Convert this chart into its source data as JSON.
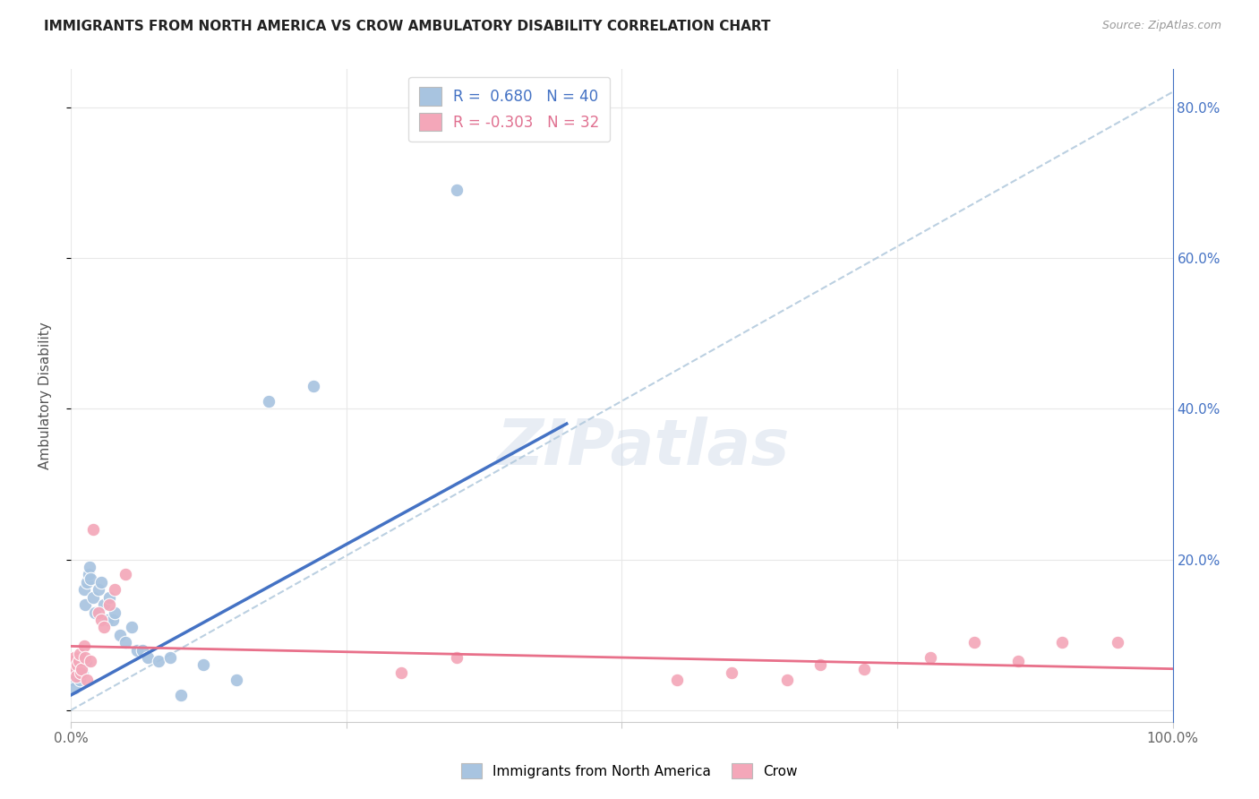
{
  "title": "IMMIGRANTS FROM NORTH AMERICA VS CROW AMBULATORY DISABILITY CORRELATION CHART",
  "source": "Source: ZipAtlas.com",
  "ylabel": "Ambulatory Disability",
  "blue_R": 0.68,
  "blue_N": 40,
  "pink_R": -0.303,
  "pink_N": 32,
  "blue_color": "#a8c4e0",
  "blue_line_color": "#4472c4",
  "pink_color": "#f4a7b9",
  "pink_line_color": "#e8708a",
  "dashed_line_color": "#b0c8dc",
  "watermark": "ZIPatlas",
  "blue_scatter_x": [
    0.002,
    0.003,
    0.004,
    0.005,
    0.006,
    0.007,
    0.008,
    0.009,
    0.01,
    0.011,
    0.012,
    0.013,
    0.014,
    0.015,
    0.016,
    0.017,
    0.018,
    0.02,
    0.022,
    0.025,
    0.028,
    0.03,
    0.033,
    0.035,
    0.038,
    0.04,
    0.045,
    0.05,
    0.055,
    0.06,
    0.065,
    0.07,
    0.08,
    0.09,
    0.1,
    0.12,
    0.15,
    0.18,
    0.22,
    0.35
  ],
  "blue_scatter_y": [
    0.04,
    0.03,
    0.05,
    0.06,
    0.045,
    0.055,
    0.04,
    0.065,
    0.07,
    0.05,
    0.16,
    0.14,
    0.065,
    0.17,
    0.18,
    0.19,
    0.175,
    0.15,
    0.13,
    0.16,
    0.17,
    0.14,
    0.12,
    0.15,
    0.12,
    0.13,
    0.1,
    0.09,
    0.11,
    0.08,
    0.08,
    0.07,
    0.065,
    0.07,
    0.02,
    0.06,
    0.04,
    0.41,
    0.43,
    0.69
  ],
  "pink_scatter_x": [
    0.002,
    0.003,
    0.004,
    0.005,
    0.006,
    0.007,
    0.008,
    0.009,
    0.01,
    0.012,
    0.013,
    0.015,
    0.018,
    0.02,
    0.025,
    0.028,
    0.03,
    0.035,
    0.04,
    0.05,
    0.3,
    0.35,
    0.55,
    0.6,
    0.65,
    0.68,
    0.72,
    0.78,
    0.82,
    0.86,
    0.9,
    0.95
  ],
  "pink_scatter_y": [
    0.065,
    0.07,
    0.055,
    0.045,
    0.06,
    0.065,
    0.075,
    0.05,
    0.055,
    0.085,
    0.07,
    0.04,
    0.065,
    0.24,
    0.13,
    0.12,
    0.11,
    0.14,
    0.16,
    0.18,
    0.05,
    0.07,
    0.04,
    0.05,
    0.04,
    0.06,
    0.055,
    0.07,
    0.09,
    0.065,
    0.09,
    0.09
  ],
  "blue_line_x": [
    0.0,
    0.45
  ],
  "blue_line_y": [
    0.02,
    0.38
  ],
  "pink_line_x": [
    0.0,
    1.0
  ],
  "pink_line_y": [
    0.085,
    0.055
  ],
  "dash_line_x": [
    0.0,
    1.0
  ],
  "dash_line_y": [
    0.0,
    0.82
  ],
  "background_color": "#ffffff",
  "grid_color": "#e8e8e8",
  "xlim": [
    0.0,
    1.0
  ],
  "ylim": [
    -0.015,
    0.85
  ]
}
